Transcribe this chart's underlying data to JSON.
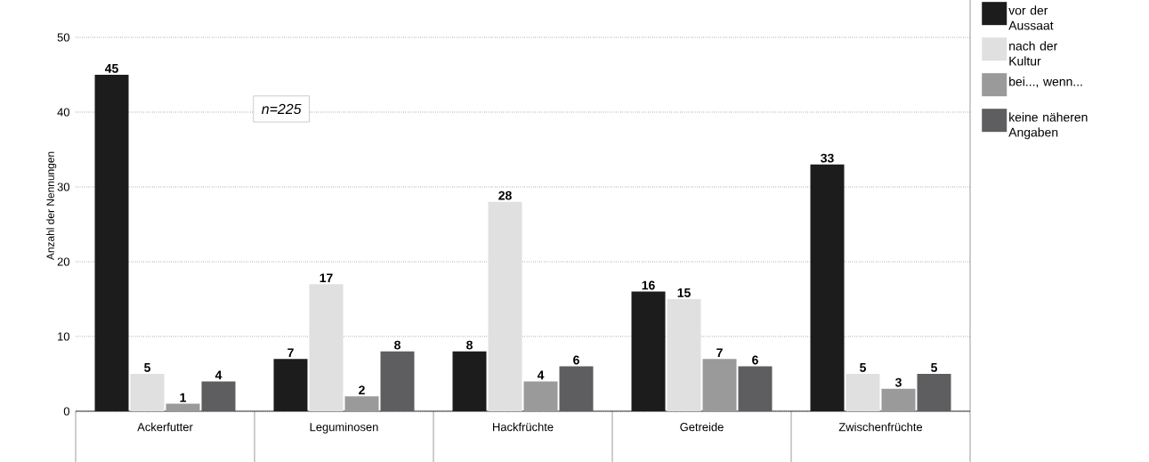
{
  "chart_data": {
    "type": "bar",
    "ylabel": "Anzahl der Nennungen",
    "categories": [
      "Ackerfutter",
      "Leguminosen",
      "Hackfrüchte",
      "Getreide",
      "Zwischenfrüchte"
    ],
    "series": [
      {
        "name": "vor der Aussaat",
        "color": "#1c1c1c",
        "values": [
          45,
          7,
          8,
          16,
          33
        ]
      },
      {
        "name": "nach der Kultur",
        "color": "#e0e0e0",
        "values": [
          5,
          17,
          28,
          15,
          5
        ]
      },
      {
        "name": "bei..., wenn...",
        "color": "#9a9a9a",
        "values": [
          1,
          2,
          4,
          7,
          3
        ]
      },
      {
        "name": "keine näheren Angaben",
        "color": "#5e5e60",
        "values": [
          4,
          8,
          6,
          6,
          5
        ]
      }
    ],
    "ylim": [
      0,
      55
    ],
    "yticks": [
      0,
      10,
      20,
      30,
      40,
      50
    ],
    "grid": "y",
    "data_labels": true,
    "legend": "right",
    "annotations": [
      "n=225"
    ]
  }
}
